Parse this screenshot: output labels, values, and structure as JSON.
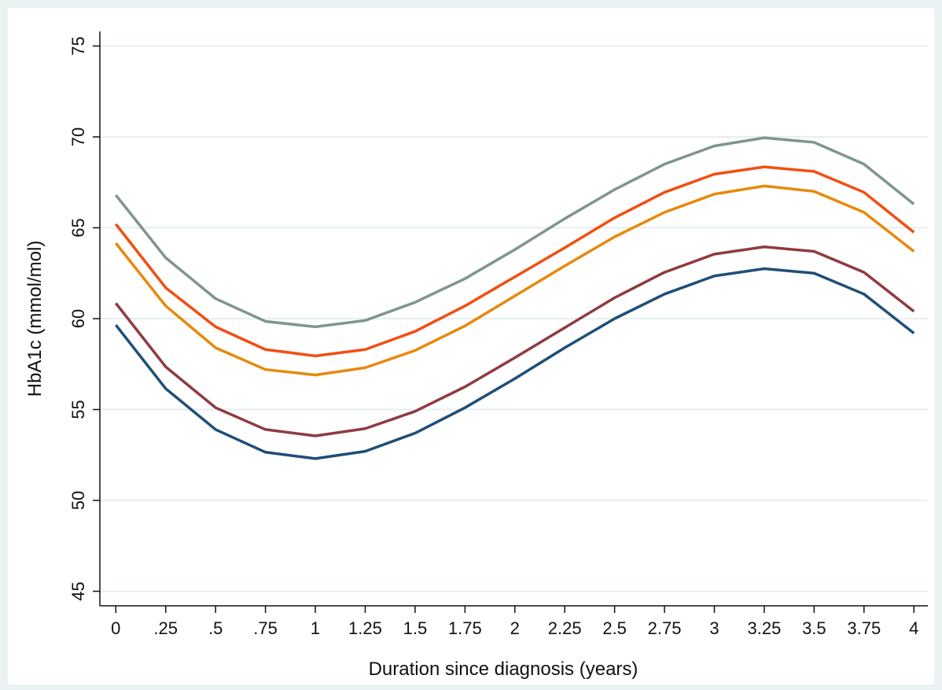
{
  "chart_data": {
    "type": "line",
    "xlabel": "Duration since diagnosis (years)",
    "ylabel": "HbA1c (mmol/mol)",
    "x": [
      0,
      0.25,
      0.5,
      0.75,
      1,
      1.25,
      1.5,
      1.75,
      2,
      2.25,
      2.5,
      2.75,
      3,
      3.25,
      3.5,
      3.75,
      4
    ],
    "series": [
      {
        "color": "#7f968b",
        "values": [
          66.8,
          63.35,
          61.1,
          59.85,
          59.55,
          59.9,
          60.9,
          62.2,
          63.8,
          65.5,
          67.1,
          68.5,
          69.5,
          69.95,
          69.7,
          68.5,
          66.3
        ]
      },
      {
        "color": "#f24e12",
        "values": [
          65.2,
          61.7,
          59.55,
          58.3,
          57.95,
          58.3,
          59.3,
          60.7,
          62.3,
          63.9,
          65.55,
          66.95,
          67.95,
          68.35,
          68.1,
          66.95,
          64.75
        ]
      },
      {
        "color": "#e8890c",
        "values": [
          64.15,
          60.7,
          58.4,
          57.2,
          56.9,
          57.3,
          58.25,
          59.6,
          61.25,
          62.9,
          64.5,
          65.85,
          66.85,
          67.3,
          67.0,
          65.85,
          63.7
        ]
      },
      {
        "color": "#8f3b41",
        "values": [
          60.85,
          57.35,
          55.1,
          53.9,
          53.55,
          53.95,
          54.9,
          56.25,
          57.85,
          59.5,
          61.15,
          62.55,
          63.55,
          63.95,
          63.7,
          62.55,
          60.4
        ]
      },
      {
        "color": "#1f4e79",
        "values": [
          59.65,
          56.15,
          53.9,
          52.65,
          52.3,
          52.7,
          53.7,
          55.1,
          56.7,
          58.4,
          60.0,
          61.35,
          62.35,
          62.75,
          62.5,
          61.35,
          59.2
        ]
      }
    ],
    "xlim": [
      -0.08,
      4.07
    ],
    "ylim": [
      44.2,
      75.8
    ],
    "xticks": [
      0,
      {
        "value": 0.25,
        "label": ".25"
      },
      {
        "value": 0.5,
        "label": ".5"
      },
      {
        "value": 0.75,
        "label": ".75"
      },
      1,
      1.25,
      1.5,
      1.75,
      2,
      2.25,
      2.5,
      2.75,
      3,
      3.25,
      3.5,
      3.75,
      4
    ],
    "yticks": [
      45,
      50,
      55,
      60,
      65,
      70,
      75
    ],
    "grid": true
  }
}
